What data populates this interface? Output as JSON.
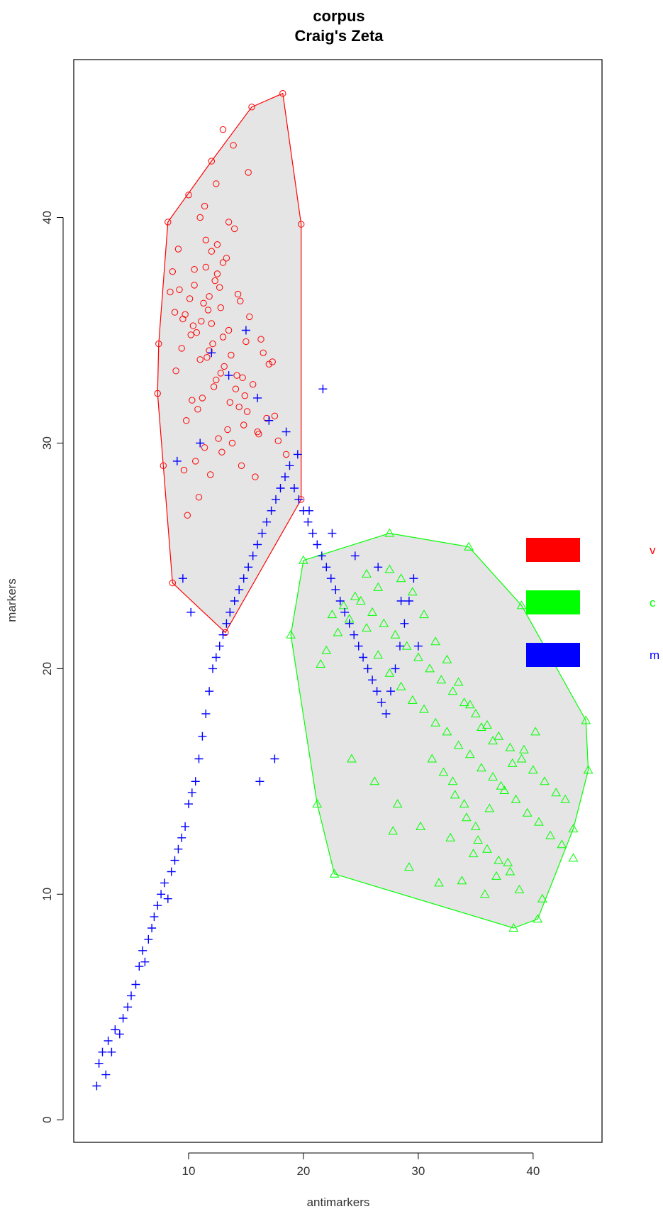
{
  "chart_data": {
    "type": "scatter",
    "title": "corpus",
    "subtitle": "Craig's Zeta",
    "xlabel": "antimarkers",
    "ylabel": "markers",
    "xlim": [
      0,
      46
    ],
    "ylim": [
      -1,
      47
    ],
    "xticks": [
      10,
      20,
      30,
      40
    ],
    "yticks": [
      0,
      10,
      20,
      30,
      40
    ],
    "grid": false,
    "legend_position": "right",
    "series": [
      {
        "name": "v",
        "color": "#ff0000",
        "marker": "circle",
        "hull": [
          [
            18.2,
            45.5
          ],
          [
            15.5,
            44.9
          ],
          [
            12.0,
            42.5
          ],
          [
            8.2,
            39.8
          ],
          [
            7.4,
            34.4
          ],
          [
            7.3,
            32.2
          ],
          [
            7.8,
            29.0
          ],
          [
            8.6,
            23.8
          ],
          [
            13.2,
            21.6
          ],
          [
            19.8,
            27.5
          ],
          [
            19.8,
            39.7
          ]
        ],
        "x": [
          18.2,
          15.5,
          13.0,
          12.0,
          8.2,
          7.4,
          7.3,
          7.8,
          8.6,
          13.2,
          19.8,
          19.8,
          10.0,
          11.0,
          11.5,
          12.0,
          12.5,
          13.0,
          14.0,
          10.5,
          11.8,
          12.8,
          9.5,
          13.5,
          15.0,
          16.5,
          17.0,
          14.2,
          12.2,
          11.2,
          10.8,
          9.8,
          9.2,
          8.8,
          10.2,
          11.6,
          12.4,
          13.6,
          14.8,
          16.0,
          17.5,
          18.5,
          15.8,
          14.6,
          13.8,
          12.6,
          11.4,
          10.6,
          9.6,
          8.9,
          9.4,
          10.4,
          11.3,
          12.3,
          13.3,
          14.3,
          15.3,
          16.3,
          17.3,
          15.6,
          14.4,
          13.4,
          12.9,
          11.9,
          10.9,
          9.9,
          9.1,
          8.6,
          10.1,
          11.1,
          12.1,
          13.1,
          14.1,
          15.1,
          16.1,
          12.7,
          11.7,
          10.7,
          13.7,
          14.7,
          10.3,
          11.5,
          12.5,
          13.5,
          14.5,
          12.0,
          11.0,
          13.0,
          9.7,
          8.4,
          10.5,
          11.8,
          12.8,
          14.9,
          16.8,
          17.8,
          15.2,
          13.9,
          12.4,
          11.4
        ],
        "y": [
          45.5,
          44.9,
          43.9,
          42.5,
          39.8,
          34.4,
          32.2,
          29.0,
          23.8,
          21.6,
          27.5,
          39.7,
          41.0,
          40.0,
          39.0,
          38.5,
          37.5,
          38.0,
          39.5,
          37.0,
          36.5,
          36.0,
          35.5,
          35.0,
          34.5,
          34.0,
          33.5,
          33.0,
          32.5,
          32.0,
          31.5,
          31.0,
          36.8,
          35.8,
          34.8,
          33.8,
          32.8,
          31.8,
          30.8,
          30.5,
          31.2,
          29.5,
          28.5,
          29.0,
          30.0,
          30.2,
          29.8,
          29.2,
          28.8,
          33.2,
          34.2,
          35.2,
          36.2,
          37.2,
          38.2,
          36.6,
          35.6,
          34.6,
          33.6,
          32.6,
          31.6,
          30.6,
          29.6,
          28.6,
          27.6,
          26.8,
          38.6,
          37.6,
          36.4,
          35.4,
          34.4,
          33.4,
          32.4,
          31.4,
          30.4,
          36.9,
          35.9,
          34.9,
          33.9,
          32.9,
          31.9,
          37.8,
          38.8,
          39.8,
          36.3,
          35.3,
          33.7,
          34.7,
          35.7,
          36.7,
          37.7,
          34.1,
          33.1,
          32.1,
          31.1,
          30.1,
          42.0,
          43.2,
          41.5,
          40.5
        ]
      },
      {
        "name": "c",
        "color": "#00ff00",
        "marker": "triangle",
        "hull": [
          [
            27.5,
            26.0
          ],
          [
            20.0,
            24.8
          ],
          [
            18.9,
            21.5
          ],
          [
            21.2,
            14.0
          ],
          [
            22.7,
            10.9
          ],
          [
            38.3,
            8.5
          ],
          [
            40.4,
            8.9
          ],
          [
            43.5,
            12.9
          ],
          [
            44.8,
            15.5
          ],
          [
            44.6,
            17.7
          ],
          [
            39.0,
            22.8
          ],
          [
            34.4,
            25.4
          ]
        ],
        "x": [
          27.5,
          20.0,
          18.9,
          21.2,
          22.7,
          38.3,
          40.4,
          43.5,
          44.8,
          44.6,
          39.0,
          34.4,
          25.0,
          26.0,
          27.0,
          28.0,
          29.0,
          30.0,
          31.0,
          32.0,
          33.0,
          34.0,
          35.0,
          36.0,
          37.0,
          38.0,
          39.0,
          40.0,
          41.0,
          42.0,
          24.0,
          23.0,
          22.0,
          21.5,
          25.5,
          26.5,
          27.5,
          28.5,
          29.5,
          30.5,
          31.5,
          32.5,
          33.5,
          34.5,
          35.5,
          36.5,
          37.5,
          38.5,
          39.5,
          40.5,
          41.5,
          42.5,
          43.5,
          33.0,
          34.0,
          35.0,
          36.0,
          37.0,
          38.0,
          36.5,
          35.5,
          34.5,
          33.5,
          32.5,
          31.5,
          30.5,
          29.5,
          28.5,
          27.5,
          26.5,
          25.5,
          24.5,
          23.5,
          22.5,
          31.2,
          32.2,
          33.2,
          34.2,
          35.2,
          36.2,
          37.2,
          38.2,
          39.2,
          40.2,
          24.2,
          26.2,
          28.2,
          30.2,
          32.8,
          34.8,
          36.8,
          38.8,
          40.8,
          42.8,
          29.2,
          31.8,
          35.8,
          37.8,
          33.8,
          27.8
        ],
        "y": [
          26.0,
          24.8,
          21.5,
          14.0,
          10.9,
          8.5,
          8.9,
          12.9,
          15.5,
          17.7,
          22.8,
          25.4,
          23.0,
          22.5,
          22.0,
          21.5,
          21.0,
          20.5,
          20.0,
          19.5,
          19.0,
          18.5,
          18.0,
          17.5,
          17.0,
          16.5,
          16.0,
          15.5,
          15.0,
          14.5,
          22.2,
          21.6,
          20.8,
          20.2,
          21.8,
          20.6,
          19.8,
          19.2,
          18.6,
          18.2,
          17.6,
          17.2,
          16.6,
          16.2,
          15.6,
          15.2,
          14.6,
          14.2,
          13.6,
          13.2,
          12.6,
          12.2,
          11.6,
          15.0,
          14.0,
          13.0,
          12.0,
          11.5,
          11.0,
          16.8,
          17.4,
          18.4,
          19.4,
          20.4,
          21.2,
          22.4,
          23.4,
          24.0,
          24.4,
          23.6,
          24.2,
          23.2,
          22.8,
          22.4,
          16.0,
          15.4,
          14.4,
          13.4,
          12.4,
          13.8,
          14.8,
          15.8,
          16.4,
          17.2,
          16.0,
          15.0,
          14.0,
          13.0,
          12.5,
          11.8,
          10.8,
          10.2,
          9.8,
          14.2,
          11.2,
          10.5,
          10.0,
          11.4,
          10.6,
          12.8
        ]
      },
      {
        "name": "m",
        "color": "#0000ff",
        "marker": "plus",
        "x": [
          2.0,
          2.2,
          2.5,
          2.8,
          3.0,
          3.3,
          3.6,
          4.0,
          4.3,
          4.7,
          5.0,
          5.4,
          5.7,
          6.0,
          6.2,
          6.5,
          6.8,
          7.0,
          7.3,
          7.6,
          7.9,
          8.2,
          8.5,
          8.8,
          9.1,
          9.4,
          9.7,
          10.0,
          10.3,
          10.6,
          10.9,
          11.2,
          11.5,
          11.8,
          12.1,
          12.4,
          12.7,
          13.0,
          13.3,
          13.6,
          14.0,
          14.4,
          14.8,
          15.2,
          15.6,
          16.0,
          16.4,
          16.8,
          17.2,
          17.6,
          18.0,
          18.4,
          18.8,
          19.2,
          19.6,
          20.0,
          20.4,
          20.8,
          21.2,
          21.6,
          22.0,
          22.4,
          22.8,
          23.2,
          23.6,
          24.0,
          24.4,
          24.8,
          25.2,
          25.6,
          26.0,
          26.4,
          26.8,
          27.2,
          27.6,
          28.0,
          28.4,
          28.8,
          29.2,
          29.6,
          30.0,
          21.7,
          9.0,
          9.5,
          10.2,
          11.0,
          12.0,
          13.5,
          15.0,
          16.0,
          17.0,
          18.5,
          19.5,
          20.5,
          22.5,
          24.5,
          26.5,
          28.5,
          16.2,
          17.5
        ],
        "y": [
          1.5,
          2.5,
          3.0,
          2.0,
          3.5,
          3.0,
          4.0,
          3.8,
          4.5,
          5.0,
          5.5,
          6.0,
          6.8,
          7.5,
          7.0,
          8.0,
          8.5,
          9.0,
          9.5,
          10.0,
          10.5,
          9.8,
          11.0,
          11.5,
          12.0,
          12.5,
          13.0,
          14.0,
          14.5,
          15.0,
          16.0,
          17.0,
          18.0,
          19.0,
          20.0,
          20.5,
          21.0,
          21.5,
          22.0,
          22.5,
          23.0,
          23.5,
          24.0,
          24.5,
          25.0,
          25.5,
          26.0,
          26.5,
          27.0,
          27.5,
          28.0,
          28.5,
          29.0,
          28.0,
          27.5,
          27.0,
          26.5,
          26.0,
          25.5,
          25.0,
          24.5,
          24.0,
          23.5,
          23.0,
          22.5,
          22.0,
          21.5,
          21.0,
          20.5,
          20.0,
          19.5,
          19.0,
          18.5,
          18.0,
          19.0,
          20.0,
          21.0,
          22.0,
          23.0,
          24.0,
          21.0,
          32.4,
          29.2,
          24.0,
          22.5,
          30.0,
          34.0,
          33.0,
          35.0,
          32.0,
          31.0,
          30.5,
          29.5,
          27.0,
          26.0,
          25.0,
          24.5,
          23.0,
          15.0,
          16.0
        ]
      }
    ],
    "legend": [
      {
        "label": "v",
        "color": "#ff0000"
      },
      {
        "label": "c",
        "color": "#00ff00"
      },
      {
        "label": "m",
        "color": "#0000ff"
      }
    ],
    "hull_fill": "#e5e5e5"
  }
}
